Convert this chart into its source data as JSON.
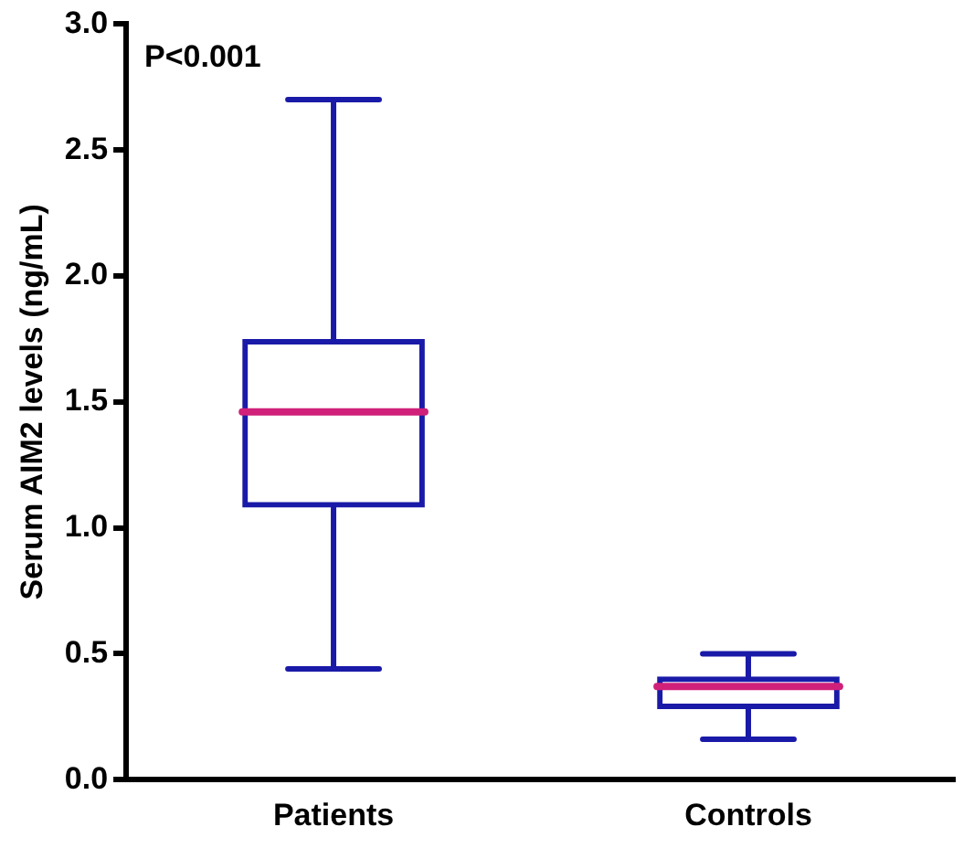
{
  "chart_data": {
    "type": "box",
    "ylabel": "Serum AIM2 levels (ng/mL)",
    "categories": [
      "Patients",
      "Controls"
    ],
    "boxes": [
      {
        "low": 0.44,
        "q1": 1.08,
        "median": 1.46,
        "q3": 1.75,
        "high": 2.7
      },
      {
        "low": 0.16,
        "q1": 0.28,
        "median": 0.37,
        "q3": 0.41,
        "high": 0.5
      }
    ],
    "color": "#1a1aa8",
    "ylim": [
      0,
      3
    ],
    "yticks": [
      {
        "value": 0,
        "label": "0.0"
      },
      0.5,
      {
        "value": 1,
        "label": "1.0"
      },
      1.5,
      {
        "value": 2,
        "label": "2.0"
      },
      2.5,
      {
        "value": 3,
        "label": "3.0"
      }
    ],
    "grid": false,
    "legend": false,
    "annotations": [
      "P<0.001"
    ]
  }
}
